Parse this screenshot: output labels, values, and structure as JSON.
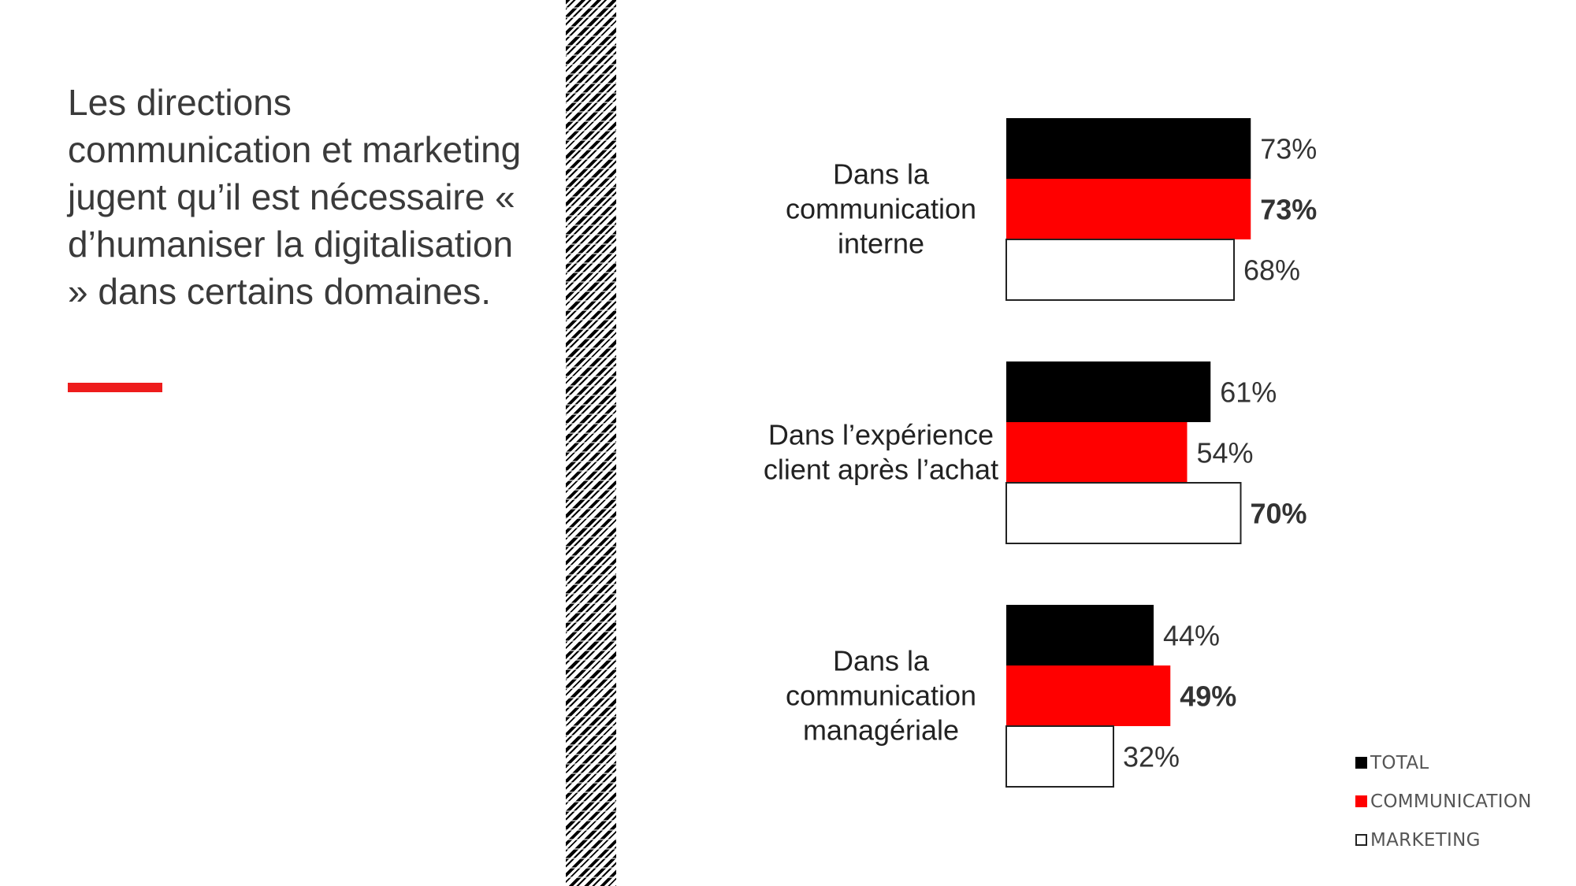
{
  "headline": "Les directions communication et marketing jugent qu’il est nécessaire « d’humaniser la digitalisation » dans certains domaines.",
  "colors": {
    "accent": "#ee1c1c",
    "total": "#000000",
    "communication": "#ff0000",
    "marketing": "#ffffff"
  },
  "legend": [
    {
      "label": "TOTAL",
      "color": "#000000"
    },
    {
      "label": "COMMUNICATION",
      "color": "#ff0000"
    },
    {
      "label": "MARKETING",
      "color": "#ffffff"
    }
  ],
  "chart_data": {
    "type": "bar",
    "orientation": "horizontal",
    "categories": [
      "Dans la communication interne",
      "Dans l’expérience client après l’achat",
      "Dans la communication managériale"
    ],
    "category_lines": [
      [
        "Dans la",
        "communication",
        "interne"
      ],
      [
        "Dans l’expérience",
        "client après l’achat"
      ],
      [
        "Dans la",
        "communication",
        "managériale"
      ]
    ],
    "series": [
      {
        "name": "TOTAL",
        "color": "#000000",
        "values": [
          73,
          61,
          44
        ],
        "labels": [
          "73%",
          "61%",
          "44%"
        ],
        "bold": [
          false,
          false,
          false
        ]
      },
      {
        "name": "COMMUNICATION",
        "color": "#ff0000",
        "values": [
          73,
          54,
          49
        ],
        "labels": [
          "73%",
          "54%",
          "49%"
        ],
        "bold": [
          true,
          false,
          true
        ]
      },
      {
        "name": "MARKETING",
        "color": "#ffffff",
        "values": [
          68,
          70,
          32
        ],
        "labels": [
          "68%",
          "70%",
          "32%"
        ],
        "bold": [
          false,
          true,
          false
        ]
      }
    ],
    "unit": "%",
    "xlim": [
      0,
      100
    ],
    "grid": false,
    "legend_position": "bottom-right"
  }
}
